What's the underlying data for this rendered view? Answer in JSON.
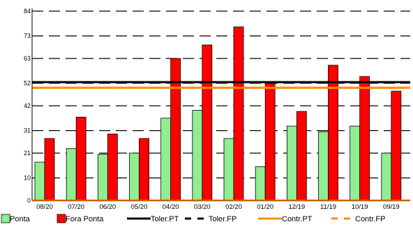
{
  "chart_data": {
    "type": "bar",
    "title": "",
    "xlabel": "",
    "ylabel": "",
    "ylim": [
      0,
      84
    ],
    "yticks": [
      "0",
      "10",
      "21",
      "31",
      "42",
      "52",
      "63",
      "73",
      "84"
    ],
    "categories": [
      "08/20",
      "07/20",
      "06/20",
      "05/20",
      "04/20",
      "03/20",
      "02/20",
      "01/20",
      "12/19",
      "11/19",
      "10/19",
      "09/19"
    ],
    "series": [
      {
        "name": "Ponta",
        "color": "#90ee90",
        "values": [
          17,
          23,
          20.5,
          21,
          36.5,
          40,
          27.5,
          15,
          33,
          30.5,
          33,
          21
        ]
      },
      {
        "name": "Fora Ponta",
        "color": "#ff0000",
        "values": [
          27.5,
          37,
          29.5,
          27.5,
          63,
          69,
          77,
          52,
          39.5,
          60,
          55,
          48.5
        ]
      }
    ],
    "reference_lines": [
      {
        "name": "Toler.PT",
        "value": 52.5,
        "color": "#000000",
        "style": "solid"
      },
      {
        "name": "Toler.FP",
        "value": 52.5,
        "color": "#000000",
        "style": "dashed"
      },
      {
        "name": "Contr.PT",
        "value": 50.0,
        "color": "#ff8c00",
        "style": "solid"
      },
      {
        "name": "Contr.FP",
        "value": 50.0,
        "color": "#ff8c00",
        "style": "dashed"
      }
    ],
    "grid": "horizontal dashed",
    "legend_position": "bottom"
  }
}
